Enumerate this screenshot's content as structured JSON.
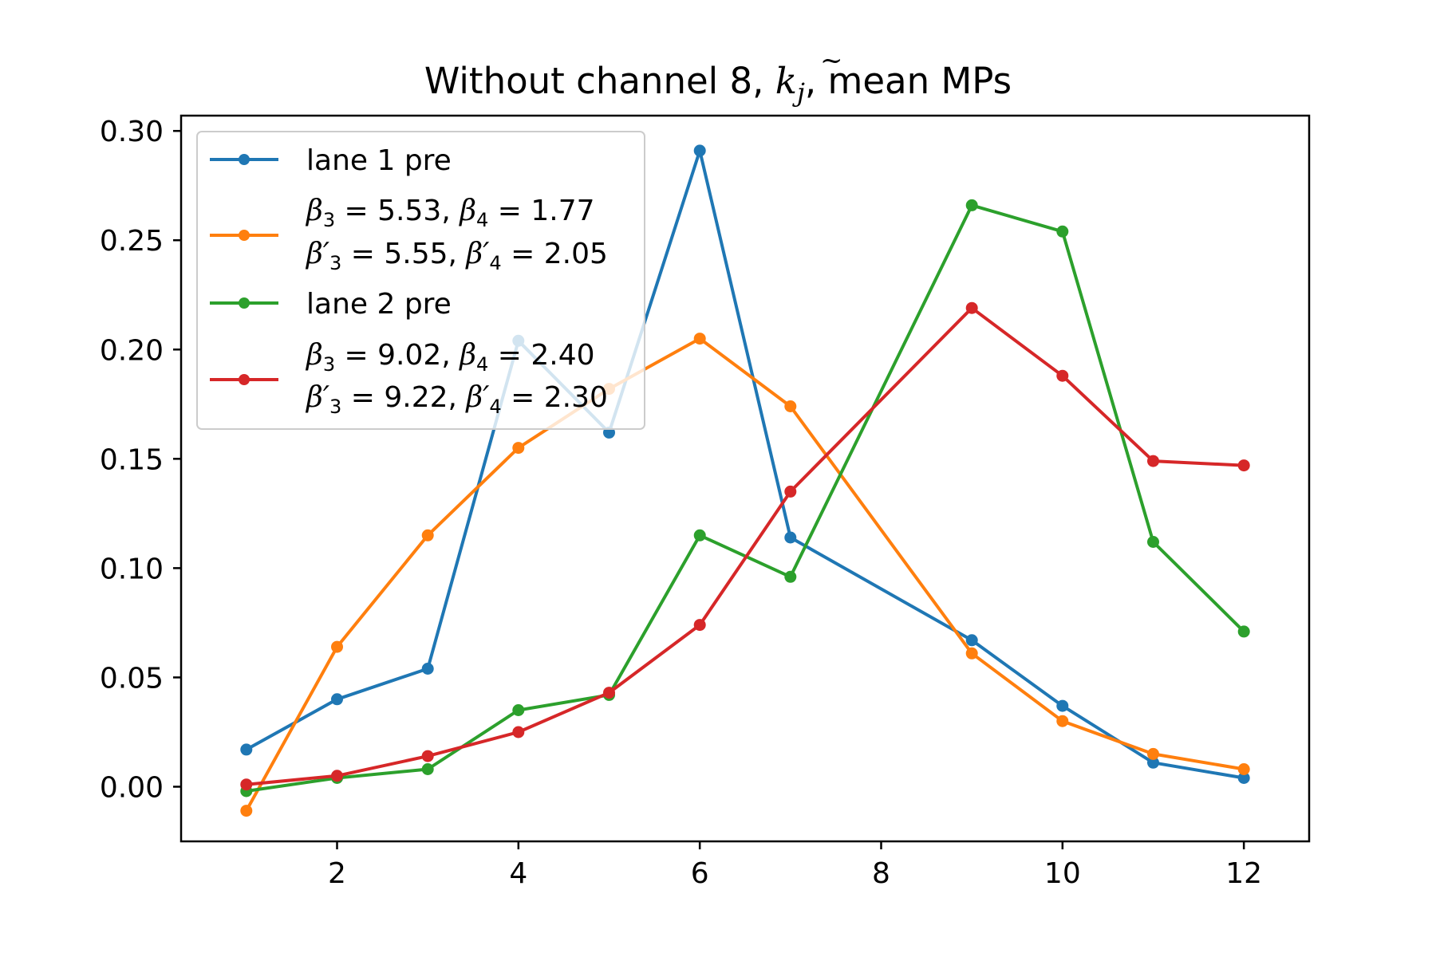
{
  "chart_data": {
    "type": "line",
    "title": "Without channel 8, k̃ⱼ, mean MPs",
    "xlabel": "",
    "ylabel": "",
    "x": [
      1,
      2,
      3,
      4,
      5,
      6,
      7,
      9,
      10,
      11,
      12
    ],
    "xlim": [
      0.28,
      12.72
    ],
    "ylim": [
      -0.025,
      0.307
    ],
    "x_ticks": [
      2,
      4,
      6,
      8,
      10,
      12
    ],
    "x_tick_labels": [
      "2",
      "4",
      "6",
      "8",
      "10",
      "12"
    ],
    "y_ticks": [
      0.0,
      0.05,
      0.1,
      0.15,
      0.2,
      0.25,
      0.3
    ],
    "y_tick_labels": [
      "0.00",
      "0.05",
      "0.10",
      "0.15",
      "0.20",
      "0.25",
      "0.30"
    ],
    "grid": false,
    "legend_position": "upper-left",
    "series": [
      {
        "name": "lane 1 pre",
        "color": "#1f77b4",
        "values": [
          0.017,
          0.04,
          0.054,
          0.204,
          0.162,
          0.291,
          0.114,
          0.067,
          0.037,
          0.011,
          0.004
        ]
      },
      {
        "name": "β3 = 5.53, β4 = 1.77 / β′3 = 5.55, β′4 = 2.05",
        "color": "#ff7f0e",
        "values": [
          -0.011,
          0.064,
          0.115,
          0.155,
          0.182,
          0.205,
          0.174,
          0.061,
          0.03,
          0.015,
          0.008
        ]
      },
      {
        "name": "lane 2 pre",
        "color": "#2ca02c",
        "values": [
          -0.002,
          0.004,
          0.008,
          0.035,
          0.042,
          0.115,
          0.096,
          0.266,
          0.254,
          0.112,
          0.071
        ]
      },
      {
        "name": "β3 = 9.02, β4 = 2.40 / β′3 = 9.22, β′4 = 2.30",
        "color": "#d62728",
        "values": [
          0.001,
          0.005,
          0.014,
          0.025,
          0.043,
          0.074,
          0.135,
          0.219,
          0.188,
          0.149,
          0.147
        ]
      }
    ],
    "legend": {
      "lane1": "lane 1 pre",
      "lane2": "lane 2 pre",
      "b1_line1": {
        "b3": "5.53",
        "b4": "1.77"
      },
      "b1_line2": {
        "b3": "5.55",
        "b4": "2.05"
      },
      "b2_line1": {
        "b3": "9.02",
        "b4": "2.40"
      },
      "b2_line2": {
        "b3": "9.22",
        "b4": "2.30"
      }
    },
    "title_parts": {
      "pre": "Without channel 8, ",
      "k": "k",
      "tilde": "~",
      "sub": "j",
      "post": ", mean MPs"
    }
  }
}
